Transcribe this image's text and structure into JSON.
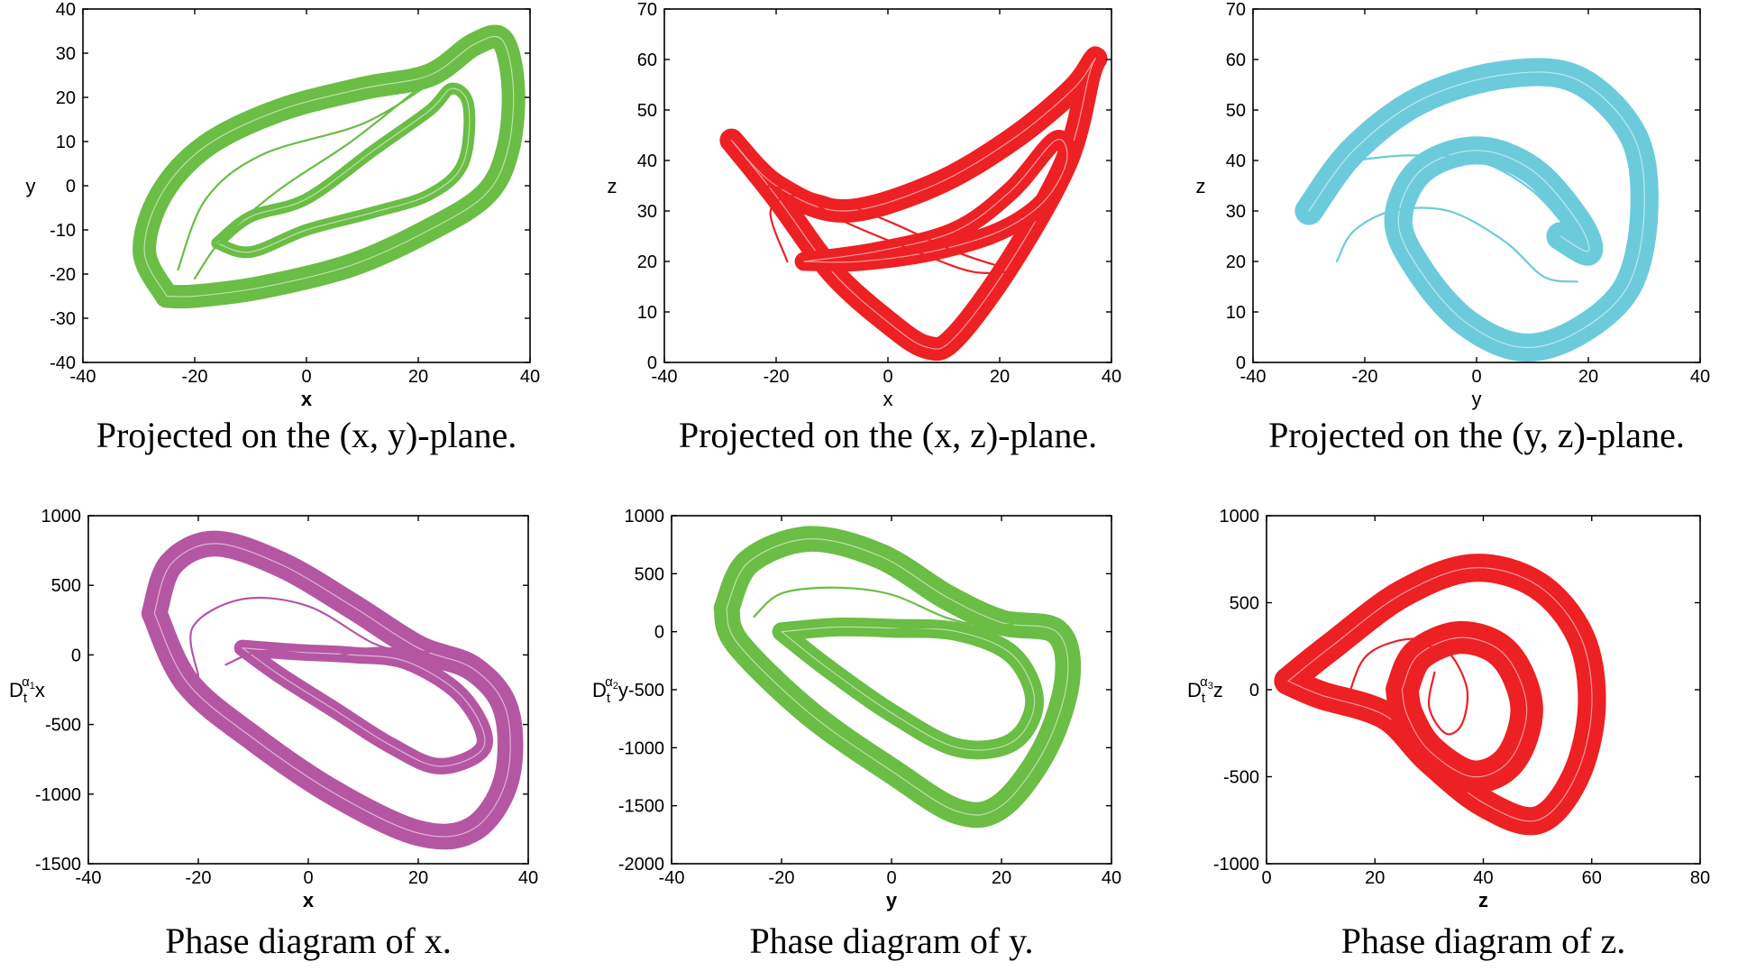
{
  "colors": {
    "green": "#6abd45",
    "red": "#ed2024",
    "cyan": "#6ccbdb",
    "magenta": "#b556a3"
  },
  "chart_data": [
    {
      "type": "line",
      "color": "green",
      "xlabel": "x",
      "ylabel": "y",
      "xlabel_bold": true,
      "xlim": [
        -40,
        40
      ],
      "ylim": [
        -40,
        40
      ],
      "xticks": [
        -40,
        -20,
        0,
        20,
        40
      ],
      "yticks": [
        -40,
        -30,
        -20,
        -10,
        0,
        10,
        20,
        30,
        40
      ],
      "xtick_labels": [
        "-40",
        "-20",
        "0",
        "20",
        "40"
      ],
      "ytick_labels": [
        "-40",
        "-30",
        "-20",
        "-10",
        "0",
        "10",
        "20",
        "30",
        "40"
      ],
      "caption": "Projected on the (x, y)-plane.",
      "bands": [
        {
          "width": 10,
          "points": [
            [
              -25,
              -25
            ],
            [
              -29,
              -15
            ],
            [
              -26,
              -2
            ],
            [
              -18,
              9
            ],
            [
              -5,
              17
            ],
            [
              10,
              22
            ],
            [
              22,
              25
            ],
            [
              30,
              32
            ],
            [
              35,
              33
            ],
            [
              37,
              22
            ],
            [
              36,
              8
            ],
            [
              32,
              -2
            ],
            [
              22,
              -10
            ],
            [
              8,
              -18
            ],
            [
              -8,
              -23
            ],
            [
              -20,
              -25
            ],
            [
              -25,
              -25
            ]
          ]
        },
        {
          "width": 5,
          "points": [
            [
              -16,
              -13
            ],
            [
              -10,
              -7
            ],
            [
              0,
              -3
            ],
            [
              12,
              8
            ],
            [
              22,
              17
            ],
            [
              26,
              22
            ],
            [
              29,
              18
            ],
            [
              28,
              5
            ],
            [
              22,
              -2
            ],
            [
              12,
              -6
            ],
            [
              0,
              -10
            ],
            [
              -10,
              -15
            ],
            [
              -16,
              -13
            ]
          ]
        }
      ],
      "strands": [
        [
          [
            -23,
            -19
          ],
          [
            -18,
            -3
          ],
          [
            -8,
            7
          ],
          [
            10,
            14
          ],
          [
            22,
            23
          ]
        ],
        [
          [
            -20,
            -21
          ],
          [
            -15,
            -12
          ],
          [
            -5,
            -1
          ],
          [
            8,
            10
          ],
          [
            20,
            22
          ]
        ]
      ]
    },
    {
      "type": "line",
      "color": "red",
      "xlabel": "x",
      "ylabel": "z",
      "xlabel_bold": false,
      "xlim": [
        -40,
        40
      ],
      "ylim": [
        0,
        70
      ],
      "xticks": [
        -40,
        -20,
        0,
        20,
        40
      ],
      "yticks": [
        0,
        10,
        20,
        30,
        40,
        50,
        60,
        70
      ],
      "xtick_labels": [
        "-40",
        "-20",
        "0",
        "20",
        "40"
      ],
      "ytick_labels": [
        "0",
        "10",
        "20",
        "30",
        "40",
        "50",
        "60",
        "70"
      ],
      "caption": "Projected on the (x, z)-plane.",
      "bands": [
        {
          "width": 10,
          "points": [
            [
              -28,
              44
            ],
            [
              -20,
              33
            ],
            [
              -10,
              18
            ],
            [
              0,
              8
            ],
            [
              7,
              3
            ],
            [
              12,
              5
            ],
            [
              22,
              20
            ],
            [
              32,
              40
            ],
            [
              36,
              57
            ],
            [
              37,
              60
            ],
            [
              33,
              54
            ],
            [
              22,
              44
            ],
            [
              8,
              35
            ],
            [
              -8,
              30
            ],
            [
              -20,
              35
            ],
            [
              -28,
              44
            ]
          ]
        },
        {
          "width": 8,
          "points": [
            [
              -15,
              20
            ],
            [
              -2,
              22
            ],
            [
              12,
              26
            ],
            [
              22,
              34
            ],
            [
              30,
              44
            ],
            [
              32,
              40
            ],
            [
              28,
              32
            ],
            [
              20,
              26
            ],
            [
              8,
              22
            ],
            [
              -5,
              20
            ],
            [
              -15,
              20
            ]
          ]
        }
      ],
      "strands": [
        [
          [
            -18,
            20
          ],
          [
            -21,
            30
          ],
          [
            -16,
            33
          ],
          [
            -8,
            28
          ],
          [
            5,
            22
          ],
          [
            15,
            18
          ],
          [
            22,
            18
          ]
        ],
        [
          [
            -22,
            35
          ],
          [
            -12,
            33
          ],
          [
            0,
            28
          ],
          [
            12,
            22
          ],
          [
            20,
            19
          ]
        ]
      ]
    },
    {
      "type": "line",
      "color": "cyan",
      "xlabel": "y",
      "ylabel": "z",
      "xlabel_bold": false,
      "xlim": [
        -40,
        40
      ],
      "ylim": [
        0,
        70
      ],
      "xticks": [
        -40,
        -20,
        0,
        20,
        40
      ],
      "yticks": [
        0,
        10,
        20,
        30,
        40,
        50,
        60,
        70
      ],
      "xtick_labels": [
        "-40",
        "-20",
        "0",
        "20",
        "40"
      ],
      "ytick_labels": [
        "0",
        "10",
        "20",
        "30",
        "40",
        "50",
        "60",
        "70"
      ],
      "caption": "Projected on the (y, z)-plane.",
      "bands": [
        {
          "width": 12,
          "points": [
            [
              -30,
              30
            ],
            [
              -22,
              42
            ],
            [
              -10,
              52
            ],
            [
              5,
              57
            ],
            [
              18,
              56
            ],
            [
              28,
              45
            ],
            [
              30,
              30
            ],
            [
              27,
              15
            ],
            [
              18,
              6
            ],
            [
              8,
              3
            ],
            [
              -2,
              8
            ],
            [
              -10,
              18
            ],
            [
              -14,
              28
            ],
            [
              -10,
              38
            ],
            [
              0,
              42
            ],
            [
              10,
              38
            ],
            [
              18,
              28
            ],
            [
              20,
              22
            ],
            [
              15,
              25
            ]
          ]
        }
      ],
      "strands": [
        [
          [
            -25,
            20
          ],
          [
            -22,
            26
          ],
          [
            -15,
            30
          ],
          [
            -5,
            30
          ],
          [
            5,
            24
          ],
          [
            12,
            17
          ],
          [
            18,
            16
          ]
        ],
        [
          [
            -22,
            40
          ],
          [
            -12,
            41
          ],
          [
            0,
            40
          ],
          [
            10,
            34
          ],
          [
            18,
            24
          ]
        ]
      ]
    },
    {
      "type": "line",
      "color": "magenta",
      "xlabel": "x",
      "ylabel_base": "D",
      "ylabel_sub": "t",
      "ylabel_sup": "α",
      "ylabel_supsub": "1",
      "ylabel_var": "x",
      "xlabel_bold": true,
      "xlim": [
        -40,
        40
      ],
      "ylim": [
        -1500,
        1000
      ],
      "xticks": [
        -40,
        -20,
        0,
        20,
        40
      ],
      "yticks": [
        -1500,
        -1000,
        -500,
        0,
        500,
        1000
      ],
      "xtick_labels": [
        "-40",
        "-20",
        "0",
        "20",
        "40"
      ],
      "ytick_labels": [
        "-1500",
        "-1000",
        "-500",
        "0",
        "500",
        "1000"
      ],
      "caption": "Phase diagram of x.",
      "bands": [
        {
          "width": 11,
          "points": [
            [
              -28,
              300
            ],
            [
              -25,
              650
            ],
            [
              -17,
              800
            ],
            [
              -5,
              650
            ],
            [
              8,
              350
            ],
            [
              20,
              50
            ],
            [
              30,
              -100
            ],
            [
              36,
              -400
            ],
            [
              36,
              -900
            ],
            [
              30,
              -1250
            ],
            [
              20,
              -1280
            ],
            [
              5,
              -1000
            ],
            [
              -10,
              -600
            ],
            [
              -22,
              -200
            ],
            [
              -28,
              300
            ]
          ]
        },
        {
          "width": 7,
          "points": [
            [
              -12,
              50
            ],
            [
              -5,
              -150
            ],
            [
              5,
              -400
            ],
            [
              15,
              -650
            ],
            [
              24,
              -800
            ],
            [
              32,
              -650
            ],
            [
              28,
              -300
            ],
            [
              18,
              -50
            ],
            [
              8,
              0
            ],
            [
              -2,
              20
            ],
            [
              -12,
              50
            ]
          ]
        }
      ],
      "strands": [
        [
          [
            -20,
            -150
          ],
          [
            -21,
            200
          ],
          [
            -12,
            400
          ],
          [
            0,
            350
          ],
          [
            12,
            80
          ],
          [
            20,
            10
          ]
        ],
        [
          [
            -15,
            -70
          ],
          [
            -8,
            30
          ],
          [
            4,
            -10
          ],
          [
            12,
            50
          ],
          [
            22,
            20
          ]
        ]
      ]
    },
    {
      "type": "line",
      "color": "green",
      "xlabel": "y",
      "ylabel_base": "D",
      "ylabel_sub": "t",
      "ylabel_sup": "α",
      "ylabel_supsub": "2",
      "ylabel_var": "y",
      "xlabel_bold": true,
      "xlim": [
        -40,
        40
      ],
      "ylim": [
        -2000,
        1000
      ],
      "xticks": [
        -40,
        -20,
        0,
        20,
        40
      ],
      "yticks": [
        -2000,
        -1500,
        -1000,
        -500,
        0,
        500,
        1000
      ],
      "xtick_labels": [
        "-40",
        "-20",
        "0",
        "20",
        "40"
      ],
      "ytick_labels": [
        "-2000",
        "-1500",
        "-1000",
        "-500",
        "0",
        "500",
        "1000"
      ],
      "caption": "Phase diagram of y.",
      "bands": [
        {
          "width": 11,
          "points": [
            [
              -30,
              200
            ],
            [
              -26,
              600
            ],
            [
              -15,
              800
            ],
            [
              -2,
              650
            ],
            [
              10,
              300
            ],
            [
              20,
              80
            ],
            [
              30,
              0
            ],
            [
              32,
              -400
            ],
            [
              28,
              -1000
            ],
            [
              20,
              -1500
            ],
            [
              12,
              -1550
            ],
            [
              0,
              -1200
            ],
            [
              -15,
              -700
            ],
            [
              -28,
              -100
            ],
            [
              -30,
              200
            ]
          ]
        },
        {
          "width": 8,
          "points": [
            [
              -20,
              0
            ],
            [
              -12,
              -300
            ],
            [
              0,
              -700
            ],
            [
              12,
              -1000
            ],
            [
              22,
              -950
            ],
            [
              26,
              -600
            ],
            [
              22,
              -200
            ],
            [
              12,
              0
            ],
            [
              0,
              30
            ],
            [
              -10,
              40
            ],
            [
              -20,
              0
            ]
          ]
        }
      ],
      "strands": [
        [
          [
            -25,
            130
          ],
          [
            -20,
            330
          ],
          [
            -10,
            380
          ],
          [
            0,
            320
          ],
          [
            10,
            120
          ],
          [
            18,
            30
          ]
        ],
        [
          [
            -18,
            -60
          ],
          [
            -10,
            -20
          ],
          [
            4,
            30
          ],
          [
            14,
            40
          ],
          [
            22,
            60
          ]
        ]
      ]
    },
    {
      "type": "line",
      "color": "red",
      "xlabel": "z",
      "ylabel_base": "D",
      "ylabel_sub": "t",
      "ylabel_sup": "α",
      "ylabel_supsub": "3",
      "ylabel_var": "z",
      "xlabel_bold": true,
      "xlim": [
        0,
        80
      ],
      "ylim": [
        -1000,
        1000
      ],
      "xticks": [
        0,
        20,
        40,
        60,
        80
      ],
      "yticks": [
        -1000,
        -500,
        0,
        500,
        1000
      ],
      "xtick_labels": [
        "0",
        "20",
        "40",
        "60",
        "80"
      ],
      "ytick_labels": [
        "-1000",
        "-500",
        "0",
        "500",
        "1000"
      ],
      "caption": "Phase diagram of z.",
      "bands": [
        {
          "width": 12,
          "points": [
            [
              4,
              50
            ],
            [
              12,
              250
            ],
            [
              25,
              550
            ],
            [
              38,
              700
            ],
            [
              50,
              600
            ],
            [
              58,
              300
            ],
            [
              60,
              -100
            ],
            [
              57,
              -500
            ],
            [
              50,
              -750
            ],
            [
              40,
              -650
            ],
            [
              30,
              -400
            ],
            [
              22,
              -150
            ],
            [
              10,
              -30
            ],
            [
              4,
              50
            ]
          ]
        },
        {
          "width": 14,
          "points": [
            [
              25,
              0
            ],
            [
              28,
              200
            ],
            [
              36,
              300
            ],
            [
              44,
              200
            ],
            [
              48,
              -100
            ],
            [
              45,
              -400
            ],
            [
              38,
              -500
            ],
            [
              30,
              -350
            ],
            [
              26,
              -150
            ],
            [
              25,
              0
            ]
          ]
        }
      ],
      "strands": [
        [
          [
            30,
            250
          ],
          [
            34,
            200
          ],
          [
            37,
            0
          ],
          [
            36,
            -200
          ],
          [
            33,
            -250
          ],
          [
            30,
            -100
          ],
          [
            31,
            100
          ]
        ],
        [
          [
            15,
            -50
          ],
          [
            18,
            180
          ],
          [
            24,
            280
          ],
          [
            32,
            300
          ]
        ]
      ]
    }
  ]
}
